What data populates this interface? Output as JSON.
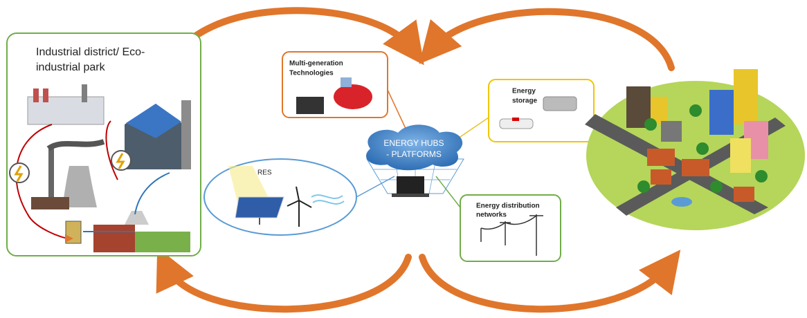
{
  "industrial_park": {
    "label_lines": [
      "Industrial district/ Eco-",
      "industrial park"
    ]
  },
  "multi_generation": {
    "label_lines": [
      "Multi-generation",
      "Technologies"
    ]
  },
  "energy_storage": {
    "label_lines": [
      "Energy",
      "storage"
    ]
  },
  "energy_hub": {
    "label_lines": [
      "ENERGY HUBS",
      "- PLATFORMS"
    ]
  },
  "res": {
    "label": "RES"
  },
  "distribution": {
    "label_lines": [
      "Energy distribution",
      "networks"
    ]
  }
}
